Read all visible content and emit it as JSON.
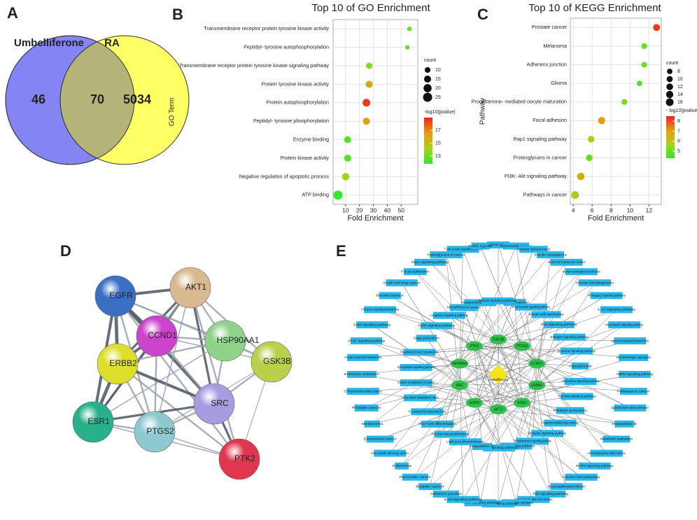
{
  "panel_labels": [
    "A",
    "B",
    "C",
    "D",
    "E"
  ],
  "chart_data": [
    {
      "type": "venn",
      "sets": [
        {
          "name": "Umbelliferone",
          "color": "#8484f4"
        },
        {
          "name": "RA",
          "color": "#ffff66"
        }
      ],
      "overlap_color": "#b3b37a",
      "values": [
        46,
        70,
        5034
      ]
    },
    {
      "type": "dot",
      "title": "Top 10 of GO Enrichment",
      "x_label": "Fold Enrichment",
      "y_label": "GO Term",
      "categories": [
        "Transmembrane receptor protein tyrosine kinase activity",
        "Peptidyl- tyrosine autophosphorylation",
        "Transmembrane receptor protein tyrosine kinase signaling pathway",
        "Protein tyrosine kinase activity",
        "Protein autophosphorylation",
        "Peptidyl- tyrosine phosphorylation",
        "Enzyme binding",
        "Protein kinase activity",
        "Negative regulation of apoptotic process",
        "ATP binding"
      ],
      "values": [
        56,
        54.5,
        27,
        27,
        25,
        25,
        11.5,
        11.5,
        10,
        4.5
      ],
      "sizes": [
        6,
        6,
        12,
        15,
        18,
        15,
        15,
        15,
        16,
        25
      ],
      "color_values": [
        13,
        13,
        13.5,
        16,
        18.5,
        16.5,
        12.5,
        12.5,
        14,
        12
      ],
      "size_label": "count",
      "size_ticks": [
        10,
        15,
        20,
        25
      ],
      "color_label": "-log10(pvalue)",
      "color_ticks": [
        13,
        15,
        17
      ],
      "color_lim": [
        11.8,
        19
      ],
      "colors": [
        "#2ee82e",
        "#a8d21a",
        "#e89a10",
        "#ee2020"
      ],
      "xlim": [
        1,
        62
      ],
      "xticks": [
        10,
        20,
        30,
        40,
        50
      ],
      "grid": true
    },
    {
      "type": "dot",
      "title": "Top 10 of KEGG Enrichment",
      "x_label": "Fold Enrichment",
      "y_label": "Pathway",
      "categories": [
        "Prostate cancer",
        "Melanoma",
        "Adherens junction",
        "Glioma",
        "Progesterone- mediated oocyte maturation",
        "Focal adhesion",
        "Rap1 signaling pathway",
        "Proteoglycans in cancer",
        "PI3K- Akt signaling pathway",
        "Pathways in cancer"
      ],
      "values": [
        12.8,
        11.5,
        11.5,
        11,
        9.4,
        7,
        5.9,
        5.7,
        4.8,
        4.2
      ],
      "sizes": [
        13,
        9,
        9,
        8,
        9,
        14,
        12,
        12,
        15,
        16
      ],
      "color_values": [
        8.2,
        5,
        5,
        4.6,
        5,
        7,
        5.8,
        5,
        6.6,
        5.6
      ],
      "size_label": "count",
      "size_ticks": [
        8,
        10,
        12,
        14,
        16
      ],
      "color_label": "- log10(pvalue)",
      "color_ticks": [
        5,
        6,
        7,
        8
      ],
      "color_lim": [
        4.3,
        8.5
      ],
      "colors": [
        "#2ee82e",
        "#a8d21a",
        "#e89a10",
        "#ee2020"
      ],
      "xlim": [
        3.7,
        13.3
      ],
      "xticks": [
        4,
        6,
        8,
        10,
        12
      ],
      "grid": true
    }
  ],
  "network_d": {
    "nodes": [
      {
        "label": "EGFR",
        "color": "#3a6fc4"
      },
      {
        "label": "AKT1",
        "color": "#d9b992"
      },
      {
        "label": "CCND1",
        "color": "#cc44cc"
      },
      {
        "label": "HSP90AA1",
        "color": "#8fd38a"
      },
      {
        "label": "ERBB2",
        "color": "#dede2c"
      },
      {
        "label": "GSK3B",
        "color": "#b9d04b"
      },
      {
        "label": "SRC",
        "color": "#a99be0"
      },
      {
        "label": "ESR1",
        "color": "#27b08a"
      },
      {
        "label": "PTGS2",
        "color": "#8ec9d0"
      },
      {
        "label": "PTK2",
        "color": "#e0364f"
      }
    ]
  },
  "network_e": {
    "center": "Umbelliferone",
    "genes": [
      "GSK3B",
      "PTGS2",
      "CCND1",
      "ERBB2",
      "ESR1",
      "AKT1",
      "EGFR",
      "SRC",
      "HSP90AA1",
      "PTK2"
    ],
    "pathways": [
      "Thyroid cancer",
      "Colorectal cancer",
      "Cellular senescence",
      "Insulin resistance",
      "Human T-cell leukemia virus 1 infection",
      "Human cytomegalovirus infection",
      "Ovarian steroidogenesis",
      "NF-kappa B signaling pathway",
      "IL-17 signaling pathway",
      "Neurotrophin signaling pathway",
      "Kaposi sarcoma-associated herpesvirus infection",
      "Serotonergic synapse",
      "AMPK signaling pathway",
      "Pathways in cancer",
      "Epstein-Barr virus infection",
      "Hepatitis B",
      "Metabolic pathways",
      "AGE-RAGE signaling pathway in diabetic complications",
      "MAPK signaling pathway",
      "C-type lectin receptor signaling pathway",
      "Human papillomavirus infection",
      "TNF signaling pathway",
      "Non-alcoholic fatty liver disease",
      "Dopaminergic synapse",
      "PI3K-Akt signaling pathway",
      "Insulin signaling pathway",
      "IL-23 signaling pathway",
      "Adherens junction",
      "Bladder cancer",
      "Pancreatic cancer",
      "Glioma",
      "Non-small cell lung cancer",
      "Endometrial cancer",
      "Melanoma",
      "Prostate cancer",
      "EGFR tyrosine kinase inhibitor resistance",
      "Endocrine resistance",
      "Acute myeloid leukemia",
      "VEGF signaling pathway",
      "ErbB signaling pathway",
      "Chronic myeloid leukemia",
      "Breast cancer",
      "Small cell lung cancer",
      "Focal adhesion",
      "Rap1 signaling pathway",
      "Proteoglycans in cancer",
      "T cell receptor signaling pathway",
      "Cell cycle",
      "Gastric cancer",
      "B cell receptor signaling pathway",
      "Renal cell carcinoma",
      "Ras signaling pathway",
      "Estrogen signaling pathway",
      "Oxytocin signaling pathway",
      "Apoptosis",
      "Chemokine signaling pathway",
      "Calcium signaling pathway",
      "Platelet activation",
      "Progesterone-mediated oocyte maturation",
      "Prolactin signaling pathway",
      "Thyroid hormone signaling pathway",
      "FoxO signaling pathway",
      "HIF-1 signaling pathway",
      "Hepatitis C",
      "Lipid and atherosclerosis",
      "Fluid shear stress and atherosclerosis",
      "Th17 cell differentiation",
      "PD-L1 expression and PD-1 checkpoint pathway in cancer",
      "Central carbon metabolism in cancer",
      "Choline metabolism in cancer",
      "Sphingolipid signaling pathway",
      "Regulation of actin cytoskeleton",
      "Gap junction",
      "GnRH signaling pathway",
      "Longevity regulating pathway",
      "MicroRNAs in cancer",
      "Hepatocellular carcinoma",
      "Relaxin signaling pathway"
    ]
  }
}
